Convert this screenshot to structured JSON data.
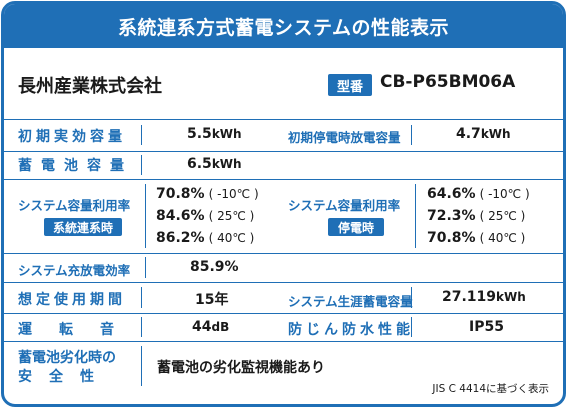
{
  "title": "系統連系方式蓄電システムの性能表示",
  "company": "長州産業株式会社",
  "model": {
    "badge": "型番",
    "value": "CB-P65BM06A"
  },
  "rows": {
    "initial_capacity": {
      "label": "初期実効容量",
      "value": "5.5",
      "unit": "kWh"
    },
    "outage_capacity": {
      "label": "初期停電時放電容量",
      "value": "4.7",
      "unit": "kWh"
    },
    "battery_capacity": {
      "label": "蓄電池容量",
      "value": "6.5",
      "unit": "kWh"
    },
    "utilization_grid": {
      "label": "システム容量利用率",
      "tag": "系統連系時",
      "values": [
        {
          "pct": "70.8%",
          "temp": "( -10℃ )"
        },
        {
          "pct": "84.6%",
          "temp": "( 25℃ )"
        },
        {
          "pct": "86.2%",
          "temp": "( 40℃ )"
        }
      ]
    },
    "utilization_outage": {
      "label": "システム容量利用率",
      "tag": "停電時",
      "values": [
        {
          "pct": "64.6%",
          "temp": "( -10℃ )"
        },
        {
          "pct": "72.3%",
          "temp": "( 25℃ )"
        },
        {
          "pct": "70.8%",
          "temp": "( 40℃ )"
        }
      ]
    },
    "efficiency": {
      "label": "システム充放電効率",
      "value": "85.9%"
    },
    "lifetime": {
      "label": "想定使用期間",
      "value": "15年"
    },
    "lifetime_energy": {
      "label": "システム生涯蓄電容量",
      "value": "27.119",
      "unit": "kWh"
    },
    "noise": {
      "label": "運転音",
      "value": "44",
      "unit": "dB"
    },
    "protection": {
      "label": "防じん防水性能",
      "value": "IP55"
    },
    "safety": {
      "label_line1": "蓄電池劣化時の",
      "label_line2": "安全性",
      "value": "蓄電池の劣化監視機能あり"
    }
  },
  "footnote": "JIS C 4414に基づく表示",
  "colors": {
    "accent": "#1f6fb6"
  }
}
